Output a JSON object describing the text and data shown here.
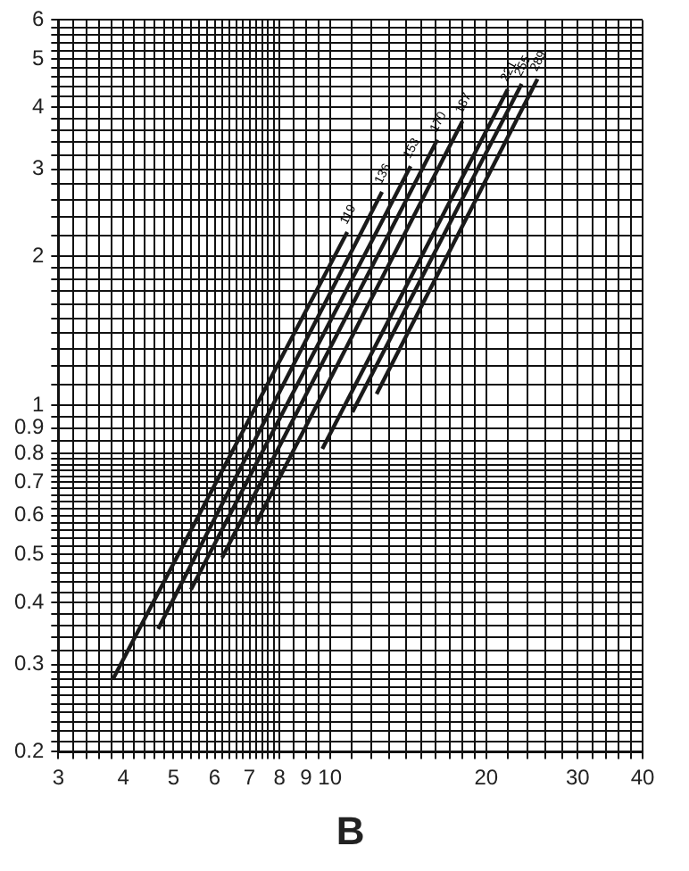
{
  "chart_data": {
    "type": "line",
    "xlabel": "B",
    "log": "xy",
    "grid": true,
    "legend": false,
    "marker": "none",
    "line_style": "solid",
    "xlim": [
      3,
      40
    ],
    "ylim": [
      0.2,
      6
    ],
    "xticks": [
      3,
      {
        "value": 3.2,
        "label": null
      },
      {
        "value": 3.4,
        "label": null
      },
      {
        "value": 3.6,
        "label": null
      },
      {
        "value": 3.8,
        "label": null
      },
      4,
      {
        "value": 4.2,
        "label": null
      },
      {
        "value": 4.4,
        "label": null
      },
      {
        "value": 4.6,
        "label": null
      },
      {
        "value": 4.8,
        "label": null
      },
      5,
      {
        "value": 5.2,
        "label": null
      },
      {
        "value": 5.4,
        "label": null
      },
      {
        "value": 5.6,
        "label": null
      },
      {
        "value": 5.8,
        "label": null
      },
      6,
      {
        "value": 6.2,
        "label": null
      },
      {
        "value": 6.4,
        "label": null
      },
      {
        "value": 6.6,
        "label": null
      },
      {
        "value": 6.8,
        "label": null
      },
      7,
      {
        "value": 7.2,
        "label": null
      },
      {
        "value": 7.4,
        "label": null
      },
      {
        "value": 7.6,
        "label": null
      },
      {
        "value": 7.8,
        "label": null
      },
      8,
      {
        "value": 8.5,
        "label": null
      },
      9,
      {
        "value": 9.5,
        "label": null
      },
      10,
      {
        "value": 11,
        "label": null
      },
      {
        "value": 12,
        "label": null
      },
      {
        "value": 13,
        "label": null
      },
      {
        "value": 14,
        "label": null
      },
      {
        "value": 15,
        "label": null
      },
      {
        "value": 16,
        "label": null
      },
      {
        "value": 17,
        "label": null
      },
      {
        "value": 18,
        "label": null
      },
      {
        "value": 19,
        "label": null
      },
      20,
      {
        "value": 22,
        "label": null
      },
      {
        "value": 24,
        "label": null
      },
      {
        "value": 26,
        "label": null
      },
      {
        "value": 28,
        "label": null
      },
      30,
      {
        "value": 32,
        "label": null
      },
      {
        "value": 34,
        "label": null
      },
      {
        "value": 36,
        "label": null
      },
      {
        "value": 38,
        "label": null
      },
      40
    ],
    "yticks": [
      0.2,
      {
        "value": 0.21,
        "label": null
      },
      {
        "value": 0.22,
        "label": null
      },
      {
        "value": 0.23,
        "label": null
      },
      {
        "value": 0.24,
        "label": null
      },
      {
        "value": 0.25,
        "label": null
      },
      {
        "value": 0.26,
        "label": null
      },
      {
        "value": 0.27,
        "label": null
      },
      {
        "value": 0.28,
        "label": null
      },
      {
        "value": 0.29,
        "label": null
      },
      0.3,
      {
        "value": 0.32,
        "label": null
      },
      {
        "value": 0.34,
        "label": null
      },
      {
        "value": 0.36,
        "label": null
      },
      {
        "value": 0.38,
        "label": null
      },
      0.4,
      {
        "value": 0.42,
        "label": null
      },
      {
        "value": 0.44,
        "label": null
      },
      {
        "value": 0.46,
        "label": null
      },
      {
        "value": 0.48,
        "label": null
      },
      0.5,
      {
        "value": 0.52,
        "label": null
      },
      {
        "value": 0.54,
        "label": null
      },
      {
        "value": 0.56,
        "label": null
      },
      {
        "value": 0.58,
        "label": null
      },
      0.6,
      {
        "value": 0.62,
        "label": null
      },
      {
        "value": 0.64,
        "label": null
      },
      {
        "value": 0.66,
        "label": null
      },
      {
        "value": 0.68,
        "label": null
      },
      0.7,
      {
        "value": 0.72,
        "label": null
      },
      {
        "value": 0.74,
        "label": null
      },
      {
        "value": 0.76,
        "label": null
      },
      {
        "value": 0.78,
        "label": null
      },
      0.8,
      {
        "value": 0.85,
        "label": null
      },
      0.9,
      {
        "value": 0.95,
        "label": null
      },
      1,
      {
        "value": 1.1,
        "label": null
      },
      {
        "value": 1.2,
        "label": null
      },
      {
        "value": 1.3,
        "label": null
      },
      {
        "value": 1.4,
        "label": null
      },
      {
        "value": 1.5,
        "label": null
      },
      {
        "value": 1.6,
        "label": null
      },
      {
        "value": 1.7,
        "label": null
      },
      {
        "value": 1.8,
        "label": null
      },
      {
        "value": 1.9,
        "label": null
      },
      2,
      {
        "value": 2.2,
        "label": null
      },
      {
        "value": 2.4,
        "label": null
      },
      {
        "value": 2.6,
        "label": null
      },
      {
        "value": 2.8,
        "label": null
      },
      3,
      {
        "value": 3.2,
        "label": null
      },
      {
        "value": 3.4,
        "label": null
      },
      {
        "value": 3.6,
        "label": null
      },
      {
        "value": 3.8,
        "label": null
      },
      4,
      {
        "value": 4.2,
        "label": null
      },
      {
        "value": 4.4,
        "label": null
      },
      {
        "value": 4.6,
        "label": null
      },
      {
        "value": 4.8,
        "label": null
      },
      5,
      {
        "value": 5.2,
        "label": null
      },
      {
        "value": 5.4,
        "label": null
      },
      {
        "value": 5.6,
        "label": null
      },
      {
        "value": 5.8,
        "label": null
      },
      6
    ],
    "series": [
      {
        "name": "119",
        "color": "#1a1a1a",
        "x": [
          3.82,
          10.8
        ],
        "values": [
          0.28,
          2.24
        ]
      },
      {
        "name": "136",
        "color": "#1a1a1a",
        "x": [
          4.67,
          12.6
        ],
        "values": [
          0.354,
          2.7
        ]
      },
      {
        "name": "153",
        "color": "#1a1a1a",
        "x": [
          5.4,
          14.3
        ],
        "values": [
          0.425,
          3.04
        ]
      },
      {
        "name": "170",
        "color": "#1a1a1a",
        "x": [
          6.2,
          16.1
        ],
        "values": [
          0.493,
          3.44
        ]
      },
      {
        "name": "187",
        "color": "#1a1a1a",
        "x": [
          7.19,
          18
        ],
        "values": [
          0.575,
          3.75
        ]
      },
      {
        "name": "221",
        "color": "#1a1a1a",
        "x": [
          9.67,
          22
        ],
        "values": [
          0.817,
          4.35
        ]
      },
      {
        "name": "255",
        "color": "#1a1a1a",
        "x": [
          11.05,
          23.4
        ],
        "values": [
          0.97,
          4.46
        ]
      },
      {
        "name": "289",
        "color": "#1a1a1a",
        "x": [
          12.3,
          25.1
        ],
        "values": [
          1.055,
          4.56
        ]
      }
    ]
  }
}
